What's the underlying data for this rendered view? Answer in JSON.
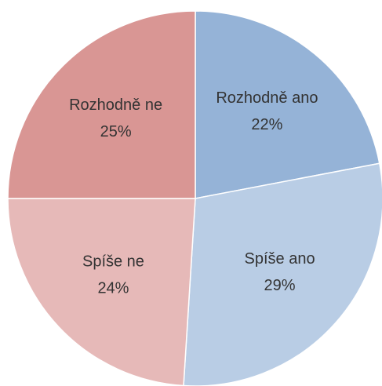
{
  "chart_data": {
    "type": "pie",
    "categories": [
      "Rozhodně ano",
      "Spíše ano",
      "Spíše ne",
      "Rozhodně ne"
    ],
    "values": [
      22,
      29,
      24,
      25
    ],
    "value_labels": [
      "22%",
      "29%",
      "24%",
      "25%"
    ],
    "colors": [
      "#95b3d7",
      "#b9cde5",
      "#e6b9b8",
      "#d99694"
    ],
    "start_angle": 90,
    "direction": "clockwise"
  }
}
